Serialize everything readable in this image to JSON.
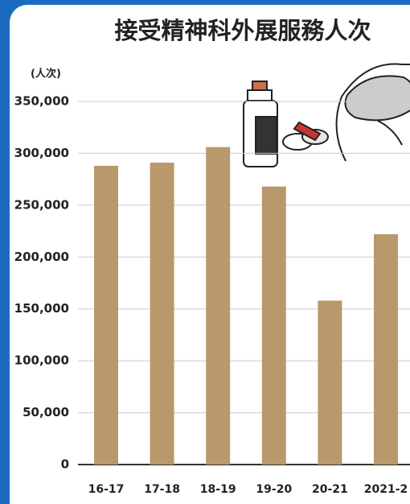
{
  "chart_data": {
    "type": "bar",
    "title": "接受精神科外展服務人次",
    "y_unit": "(人次)",
    "categories": [
      "16-17",
      "17-18",
      "18-19",
      "19-20",
      "20-21",
      "2021-2"
    ],
    "values": [
      288000,
      291000,
      306000,
      268000,
      158000,
      222000
    ],
    "color": "#b9996b",
    "ylim": [
      0,
      350000
    ],
    "yticks": [
      0,
      {
        "value": 50000,
        "label": "50,000"
      },
      {
        "value": 100000,
        "label": "100,000"
      },
      {
        "value": 150000,
        "label": "150,000"
      },
      {
        "value": 200000,
        "label": "200,000"
      },
      {
        "value": 250000,
        "label": "250,000"
      },
      {
        "value": 300000,
        "label": "300,000"
      },
      {
        "value": 350000,
        "label": "350,000"
      }
    ],
    "grid": true
  }
}
